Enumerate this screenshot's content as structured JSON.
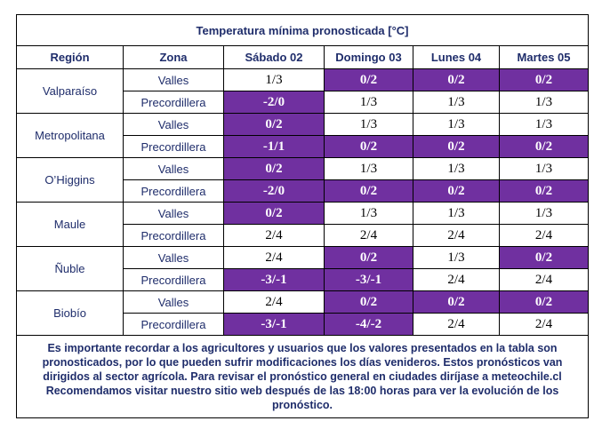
{
  "title": "Temperatura mínima pronosticada [°C]",
  "headers": [
    "Región",
    "Zona",
    "Sábado 02",
    "Domingo 03",
    "Lunes 04",
    "Martes 05"
  ],
  "highlight_color": "#7030a0",
  "text_color": "#1f2d6b",
  "regions": [
    {
      "name": "Valparaíso",
      "rows": [
        {
          "zona": "Valles",
          "values": [
            "1/3",
            "0/2",
            "0/2",
            "0/2"
          ],
          "hl": [
            false,
            true,
            true,
            true
          ]
        },
        {
          "zona": "Precordillera",
          "values": [
            "-2/0",
            "1/3",
            "1/3",
            "1/3"
          ],
          "hl": [
            true,
            false,
            false,
            false
          ]
        }
      ]
    },
    {
      "name": "Metropolitana",
      "rows": [
        {
          "zona": "Valles",
          "values": [
            "0/2",
            "1/3",
            "1/3",
            "1/3"
          ],
          "hl": [
            true,
            false,
            false,
            false
          ]
        },
        {
          "zona": "Precordillera",
          "values": [
            "-1/1",
            "0/2",
            "0/2",
            "0/2"
          ],
          "hl": [
            true,
            true,
            true,
            true
          ]
        }
      ]
    },
    {
      "name": "O’Higgins",
      "rows": [
        {
          "zona": "Valles",
          "values": [
            "0/2",
            "1/3",
            "1/3",
            "1/3"
          ],
          "hl": [
            true,
            false,
            false,
            false
          ]
        },
        {
          "zona": "Precordillera",
          "values": [
            "-2/0",
            "0/2",
            "0/2",
            "0/2"
          ],
          "hl": [
            true,
            true,
            true,
            true
          ]
        }
      ]
    },
    {
      "name": "Maule",
      "rows": [
        {
          "zona": "Valles",
          "values": [
            "0/2",
            "1/3",
            "1/3",
            "1/3"
          ],
          "hl": [
            true,
            false,
            false,
            false
          ]
        },
        {
          "zona": "Precordillera",
          "values": [
            "2/4",
            "2/4",
            "2/4",
            "2/4"
          ],
          "hl": [
            false,
            false,
            false,
            false
          ]
        }
      ]
    },
    {
      "name": "Ñuble",
      "rows": [
        {
          "zona": "Valles",
          "values": [
            "2/4",
            "0/2",
            "1/3",
            "0/2"
          ],
          "hl": [
            false,
            true,
            false,
            true
          ]
        },
        {
          "zona": "Precordillera",
          "values": [
            "-3/-1",
            "-3/-1",
            "2/4",
            "2/4"
          ],
          "hl": [
            true,
            true,
            false,
            false
          ]
        }
      ]
    },
    {
      "name": "Biobío",
      "rows": [
        {
          "zona": "Valles",
          "values": [
            "2/4",
            "0/2",
            "0/2",
            "0/2"
          ],
          "hl": [
            false,
            true,
            true,
            true
          ]
        },
        {
          "zona": "Precordillera",
          "values": [
            "-3/-1",
            "-4/-2",
            "2/4",
            "2/4"
          ],
          "hl": [
            true,
            true,
            false,
            false
          ]
        }
      ]
    }
  ],
  "note": "Es importante recordar a los agricultores y usuarios que los valores presentados en la tabla son pronosticados, por lo que pueden sufrir modificaciones los días venideros. Estos pronósticos van dirigidos al sector agrícola. Para revisar el pronóstico general en ciudades diríjase a meteochile.cl Recomendamos visitar nuestro sitio web después de las 18:00 horas para ver la evolución de los pronóstico."
}
